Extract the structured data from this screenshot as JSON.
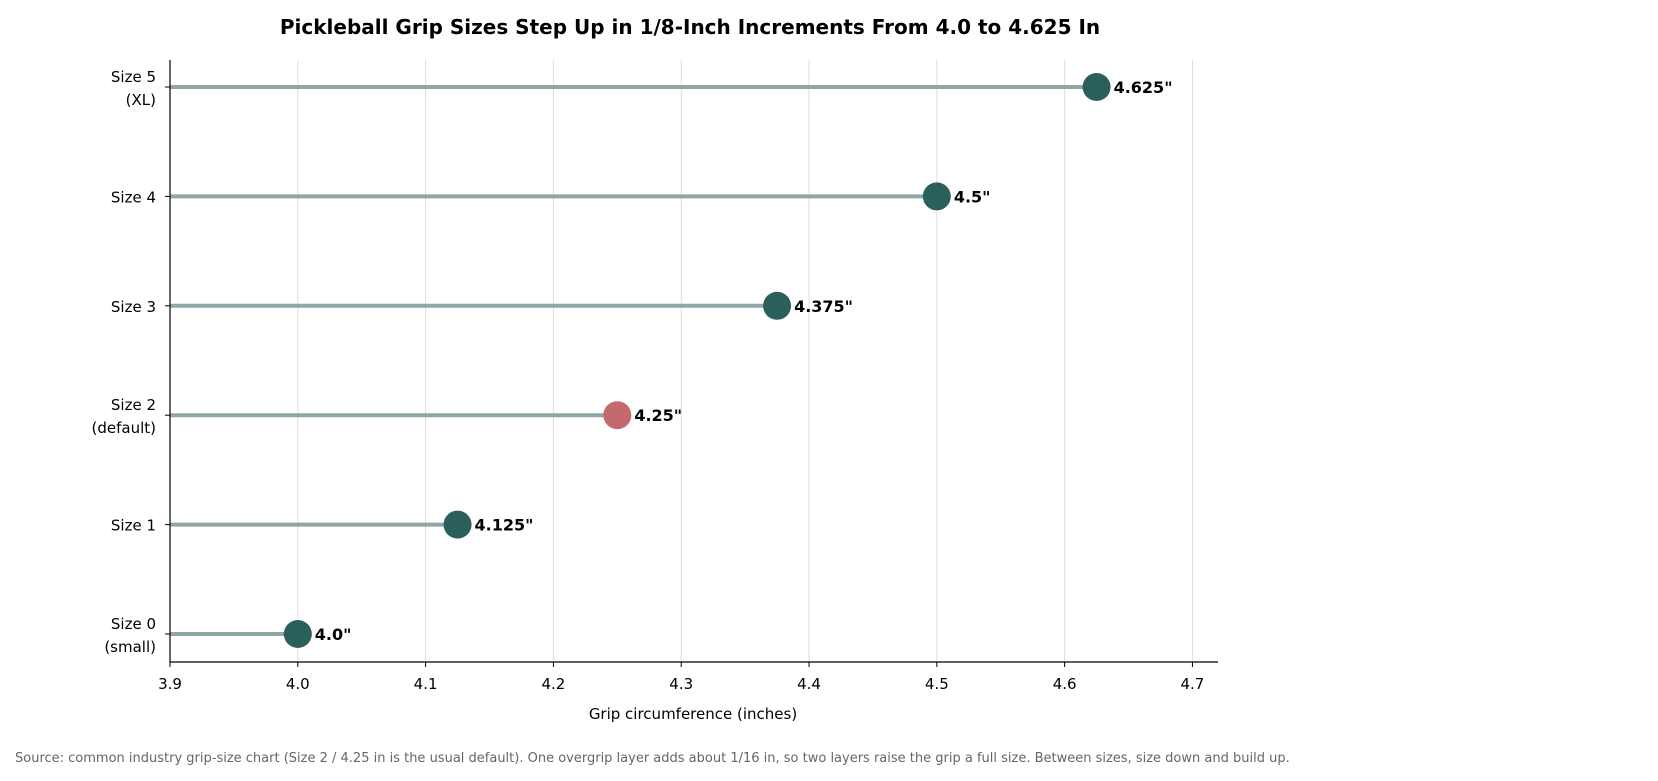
{
  "chart_data": {
    "type": "lollipop",
    "title": "Pickleball Grip Sizes Step Up in 1/8-Inch Increments From 4.0 to 4.625 In",
    "xlabel": "Grip circumference (inches)",
    "ylabel": "",
    "xlim": [
      3.9,
      4.72
    ],
    "xticks": [
      "3.9",
      "4.0",
      "4.1",
      "4.2",
      "4.3",
      "4.4",
      "4.5",
      "4.6",
      "4.7"
    ],
    "grid": "vertical",
    "orientation": "horizontal",
    "categories": [
      [
        "Size 0",
        "(small)"
      ],
      [
        "Size 1"
      ],
      [
        "Size 2",
        "(default)"
      ],
      [
        "Size 3"
      ],
      [
        "Size 4"
      ],
      [
        "Size 5",
        "(XL)"
      ]
    ],
    "values": [
      4.0,
      4.125,
      4.25,
      4.375,
      4.5,
      4.625
    ],
    "data_labels": [
      "4.0\"",
      "4.125\"",
      "4.25\"",
      "4.375\"",
      "4.5\"",
      "4.625\""
    ],
    "highlight_index": 2,
    "colors": {
      "point": "#2b5f5c",
      "highlight": "#c46a6e",
      "stem": "#8fa6a6",
      "grid": "#dddddd",
      "axis": "#000000"
    },
    "source": "Source: common industry grip-size chart (Size 2 / 4.25 in is the usual default). One overgrip layer adds about 1/16 in, so two layers raise the grip a full size. Between sizes, size down and build up."
  }
}
